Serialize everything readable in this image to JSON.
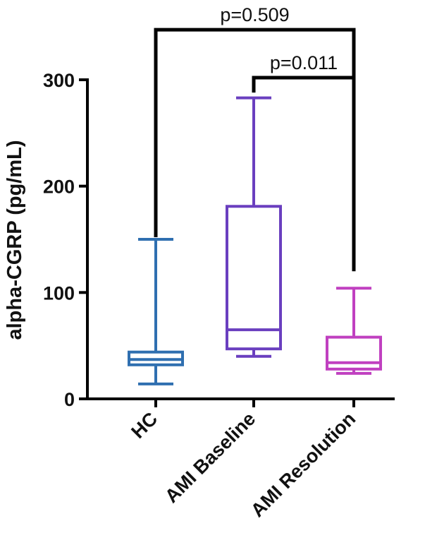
{
  "chart_data": {
    "type": "box",
    "ylabel": "alpha-CGRP (pg/mL)",
    "xlabel": "",
    "title": "",
    "ylim": [
      0,
      300
    ],
    "yticks": [
      0,
      100,
      200,
      300
    ],
    "ytick_labels": [
      "0",
      "100",
      "200",
      "300"
    ],
    "grid": false,
    "legend": "none",
    "categories": [
      "HC",
      "AMI Baseline",
      "AMI Resolution"
    ],
    "series": [
      {
        "category": "HC",
        "color": "#2f6fb0",
        "min": 14,
        "q1": 32,
        "median": 37,
        "q3": 44,
        "max": 150
      },
      {
        "category": "AMI Baseline",
        "color": "#6a3fbf",
        "min": 40,
        "q1": 47,
        "median": 65,
        "q3": 181,
        "max": 283
      },
      {
        "category": "AMI Resolution",
        "color": "#c040c0",
        "min": 24,
        "q1": 28,
        "median": 34,
        "q3": 58,
        "max": 104
      }
    ],
    "annotations": [
      {
        "text": "p=0.509",
        "from": "HC",
        "to": "AMI Resolution",
        "left_y": 152,
        "right_y": 120,
        "bracket_y": 347
      },
      {
        "text": "p=0.011",
        "from": "AMI Baseline",
        "to": "AMI Resolution",
        "left_y": 288,
        "right_y": 288,
        "bracket_y": 302
      }
    ]
  }
}
